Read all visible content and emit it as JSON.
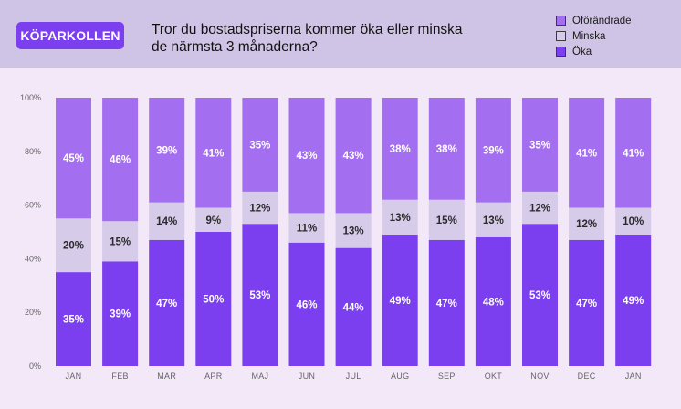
{
  "header": {
    "brand": "KÖPARKOLLEN",
    "question_line1": "Tror du bostadspriserna kommer öka eller minska",
    "question_line2": "de närmsta 3 månaderna?"
  },
  "colors": {
    "header_bg": "#d0c4e6",
    "page_bg": "#f2e8f8",
    "brand": "#7b3ff0",
    "oforandrade": "#a46ef0",
    "minska": "#d6cbe9",
    "oka": "#7b3ff0"
  },
  "legend": [
    {
      "label": "Oförändrade",
      "color": "#a46ef0"
    },
    {
      "label": "Minska",
      "color": "#d6cbe9"
    },
    {
      "label": "Öka",
      "color": "#7b3ff0"
    }
  ],
  "chart_data": {
    "type": "bar",
    "stacked": true,
    "title": "Tror du bostadspriserna kommer öka eller minska de närmsta 3 månaderna?",
    "xlabel": "",
    "ylabel": "",
    "ylim": [
      0,
      100
    ],
    "y_ticks": [
      "0%",
      "20%",
      "40%",
      "60%",
      "80%",
      "100%"
    ],
    "categories": [
      "JAN",
      "FEB",
      "MAR",
      "APR",
      "MAJ",
      "JUN",
      "JUL",
      "AUG",
      "SEP",
      "OKT",
      "NOV",
      "DEC",
      "JAN"
    ],
    "series": [
      {
        "name": "Öka",
        "color": "#7b3ff0",
        "text_color": "#ffffff",
        "values": [
          35,
          39,
          47,
          50,
          53,
          46,
          44,
          49,
          47,
          48,
          53,
          47,
          49
        ],
        "labels": [
          "35%",
          "39%",
          "47%",
          "50%",
          "53%",
          "46%",
          "44%",
          "49%",
          "47%",
          "48%",
          "53%",
          "47%",
          "49%"
        ]
      },
      {
        "name": "Minska",
        "color": "#d6cbe9",
        "text_color": "#2a2a2a",
        "values": [
          20,
          15,
          14,
          9,
          12,
          11,
          13,
          13,
          15,
          13,
          12,
          12,
          10
        ],
        "labels": [
          "20%",
          "15%",
          "14%",
          "9%",
          "12%",
          "11%",
          "13%",
          "13%",
          "15%",
          "13%",
          "12%",
          "12%",
          "10%"
        ]
      },
      {
        "name": "Oförändrade",
        "color": "#a46ef0",
        "text_color": "#ffffff",
        "values": [
          45,
          46,
          39,
          41,
          35,
          43,
          43,
          38,
          38,
          39,
          35,
          41,
          41
        ],
        "labels": [
          "45%",
          "46%",
          "39%",
          "41%",
          "35%",
          "43%",
          "43%",
          "38%",
          "38%",
          "39%",
          "35%",
          "41%",
          "41%"
        ]
      }
    ]
  }
}
